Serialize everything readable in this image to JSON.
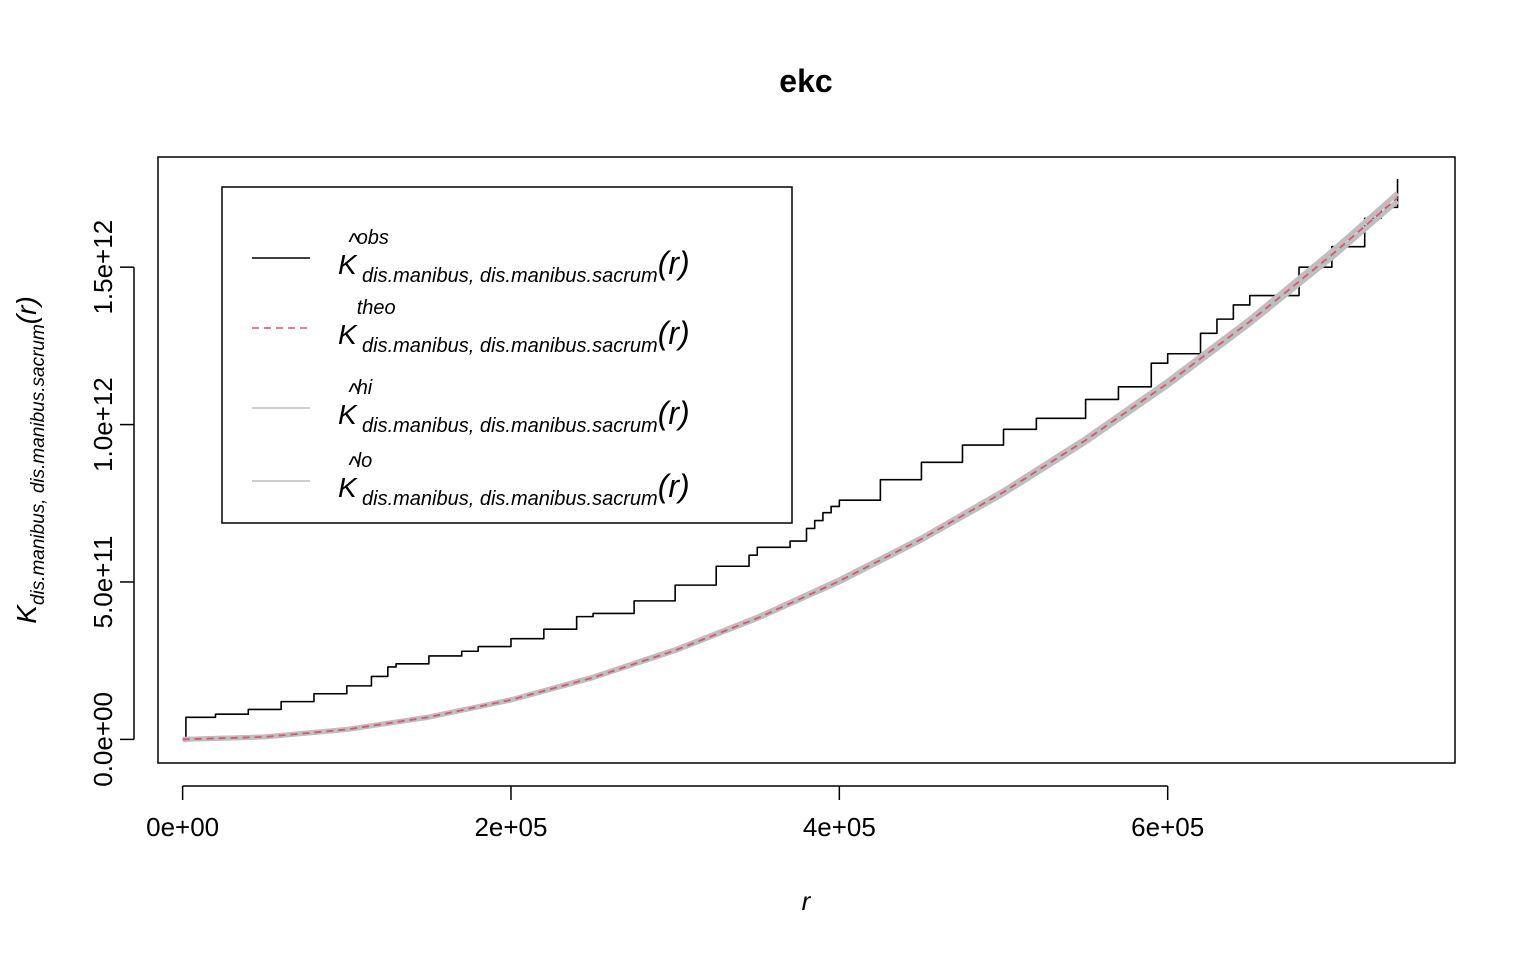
{
  "chart_data": {
    "type": "line",
    "title": "ekc",
    "xlabel": "r",
    "ylabel": {
      "main": "K",
      "subscript": "dis.manibus, dis.manibus.sacrum",
      "tail": "(r)"
    },
    "xlim": [
      -15000,
      775000
    ],
    "ylim": [
      -75000000000,
      1850000000000
    ],
    "x_ticks": [
      {
        "value": 0,
        "label": "0e+00"
      },
      {
        "value": 200000,
        "label": "2e+05"
      },
      {
        "value": 400000,
        "label": "4e+05"
      },
      {
        "value": 600000,
        "label": "6e+05"
      }
    ],
    "y_ticks": [
      {
        "value": 0,
        "label": "0.0e+00"
      },
      {
        "value": 500000000000,
        "label": "5.0e+11"
      },
      {
        "value": 1000000000000,
        "label": "1.0e+12"
      },
      {
        "value": 1500000000000,
        "label": "1.5e+12"
      }
    ],
    "grid": false,
    "legend_position": "top-left",
    "legend": [
      {
        "main": "K",
        "hat": true,
        "sup": "obs",
        "sub": "dis.manibus, dis.manibus.sacrum",
        "tail": "(r)",
        "color": "#000000",
        "dash": "",
        "width": 1.5
      },
      {
        "main": "K",
        "hat": false,
        "sup": "theo",
        "sub": "dis.manibus, dis.manibus.sacrum",
        "tail": "(r)",
        "color": "#DF536B",
        "dash": "7,5",
        "width": 1.5
      },
      {
        "main": "K",
        "hat": true,
        "sup": "hi",
        "sub": "dis.manibus, dis.manibus.sacrum",
        "tail": "(r)",
        "color": "#BEBEBE",
        "dash": "",
        "width": 1.5
      },
      {
        "main": "K",
        "hat": true,
        "sup": "lo",
        "sub": "dis.manibus, dis.manibus.sacrum",
        "tail": "(r)",
        "color": "#BEBEBE",
        "dash": "",
        "width": 1.5
      }
    ],
    "series": [
      {
        "key": "obs",
        "color": "#000000",
        "x": [
          0,
          2000,
          20000,
          40000,
          60000,
          80000,
          100000,
          115000,
          125000,
          130000,
          150000,
          170000,
          180000,
          200000,
          220000,
          240000,
          250000,
          275000,
          300000,
          325000,
          345000,
          350000,
          370000,
          380000,
          385000,
          390000,
          395000,
          400000,
          425000,
          450000,
          475000,
          500000,
          520000,
          550000,
          570000,
          590000,
          600000,
          620000,
          630000,
          640000,
          650000,
          680000,
          700000,
          720000,
          730000,
          740000
        ],
        "y": [
          0,
          70000000000,
          80000000000,
          95000000000,
          120000000000,
          145000000000,
          170000000000,
          200000000000,
          230000000000,
          240000000000,
          265000000000,
          280000000000,
          295000000000,
          320000000000,
          350000000000,
          390000000000,
          400000000000,
          440000000000,
          490000000000,
          550000000000,
          585000000000,
          610000000000,
          630000000000,
          670000000000,
          695000000000,
          720000000000,
          740000000000,
          760000000000,
          825000000000,
          880000000000,
          935000000000,
          985000000000,
          1020000000000,
          1080000000000,
          1120000000000,
          1195000000000,
          1225000000000,
          1290000000000,
          1335000000000,
          1380000000000,
          1410000000000,
          1500000000000,
          1565000000000,
          1655000000000,
          1690000000000,
          1780000000000
        ]
      },
      {
        "key": "hi",
        "color": "#BEBEBE",
        "x": [
          0,
          50000,
          100000,
          150000,
          200000,
          250000,
          300000,
          350000,
          400000,
          450000,
          500000,
          550000,
          600000,
          650000,
          700000,
          740000
        ],
        "y": [
          0,
          7900000000,
          31700000000,
          71300000000,
          126000000000,
          198000000000,
          285000000000,
          388000000000,
          507000000000,
          640000000000,
          790000000000,
          956000000000,
          1138000000000,
          1335000000000,
          1551000000000,
          1735000000000
        ]
      },
      {
        "key": "lo",
        "color": "#BEBEBE",
        "x": [
          0,
          50000,
          100000,
          150000,
          200000,
          250000,
          300000,
          350000,
          400000,
          450000,
          500000,
          550000,
          600000,
          650000,
          700000,
          740000
        ],
        "y": [
          0,
          7800000000,
          31300000000,
          70400000000,
          125000000000,
          196000000000,
          282000000000,
          384000000000,
          500000000000,
          633000000000,
          780000000000,
          944000000000,
          1124000000000,
          1320000000000,
          1530000000000,
          1710000000000
        ]
      },
      {
        "key": "theo",
        "color": "#DF536B",
        "x": [
          0,
          50000,
          100000,
          150000,
          200000,
          250000,
          300000,
          350000,
          400000,
          450000,
          500000,
          550000,
          600000,
          650000,
          700000,
          740000
        ],
        "y": [
          0,
          7850000000,
          31400000000,
          70700000000,
          125700000000,
          196300000000,
          282700000000,
          384800000000,
          502700000000,
          636200000000,
          785400000000,
          950300000000,
          1131000000000,
          1327300000000,
          1539400000000,
          1720300000000
        ]
      }
    ]
  }
}
